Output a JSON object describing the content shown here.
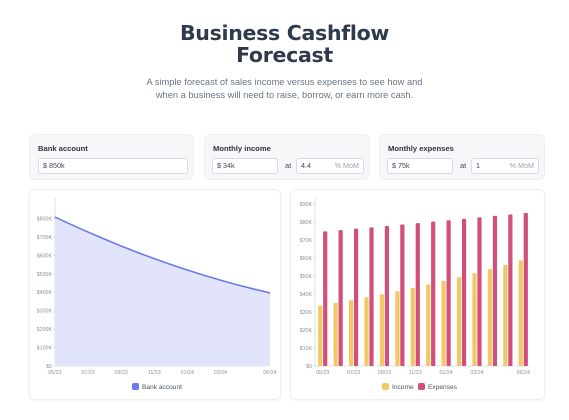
{
  "header": {
    "title_line1": "Business Cashflow",
    "title_line2": "Forecast",
    "subtitle_line1": "A simple forecast of sales income versus expenses to see how and",
    "subtitle_line2": "when a business will need to raise, borrow, or earn more cash."
  },
  "inputs": {
    "bank_account": {
      "label": "Bank account",
      "value": "$ 850k"
    },
    "monthly_income": {
      "label": "Monthly income",
      "value": "$ 34k",
      "at": "at",
      "growth": "4.4",
      "unit": "% MoM"
    },
    "monthly_expenses": {
      "label": "Monthly expenses",
      "value": "$ 75k",
      "at": "at",
      "growth": "1",
      "unit": "% MoM"
    }
  },
  "colors": {
    "bank_line": "#6b7be8",
    "bank_fill": "#e2e4fb",
    "income": "#f2c766",
    "expenses": "#d14f78"
  },
  "chart_data": [
    {
      "type": "area",
      "x_tick_labels": [
        "05/23",
        "07/23",
        "09/23",
        "11/23",
        "01/24",
        "03/24",
        "06/24"
      ],
      "y_tick_labels": [
        "$0",
        "$100K",
        "$200K",
        "$300K",
        "$400K",
        "$500K",
        "$600K",
        "$700K",
        "$800K"
      ],
      "ylim": [
        0,
        880000
      ],
      "series": [
        {
          "name": "Bank account",
          "values": [
            809000,
            767500,
            727500,
            689000,
            652000,
            616500,
            583000,
            551500,
            521500,
            493000,
            466500,
            441500,
            418500,
            397000
          ]
        }
      ],
      "legend": "bottom"
    },
    {
      "type": "bar",
      "x_tick_labels": [
        "05/23",
        "07/23",
        "09/23",
        "11/23",
        "01/24",
        "03/24",
        "06/24"
      ],
      "y_tick_labels": [
        "$0",
        "$10K",
        "$20K",
        "$30K",
        "$40K",
        "$50K",
        "$60K",
        "$70K",
        "$80K",
        "$90K"
      ],
      "ylim": [
        0,
        90000
      ],
      "series": [
        {
          "name": "Income",
          "values": [
            33500,
            35000,
            36500,
            38100,
            39800,
            41500,
            43400,
            45300,
            47300,
            49400,
            51500,
            53800,
            56200,
            58700
          ]
        },
        {
          "name": "Expenses",
          "values": [
            74800,
            75500,
            76300,
            77000,
            77800,
            78600,
            79400,
            80200,
            81000,
            81800,
            82600,
            83400,
            84200,
            85000
          ]
        }
      ],
      "legend": "bottom"
    }
  ]
}
